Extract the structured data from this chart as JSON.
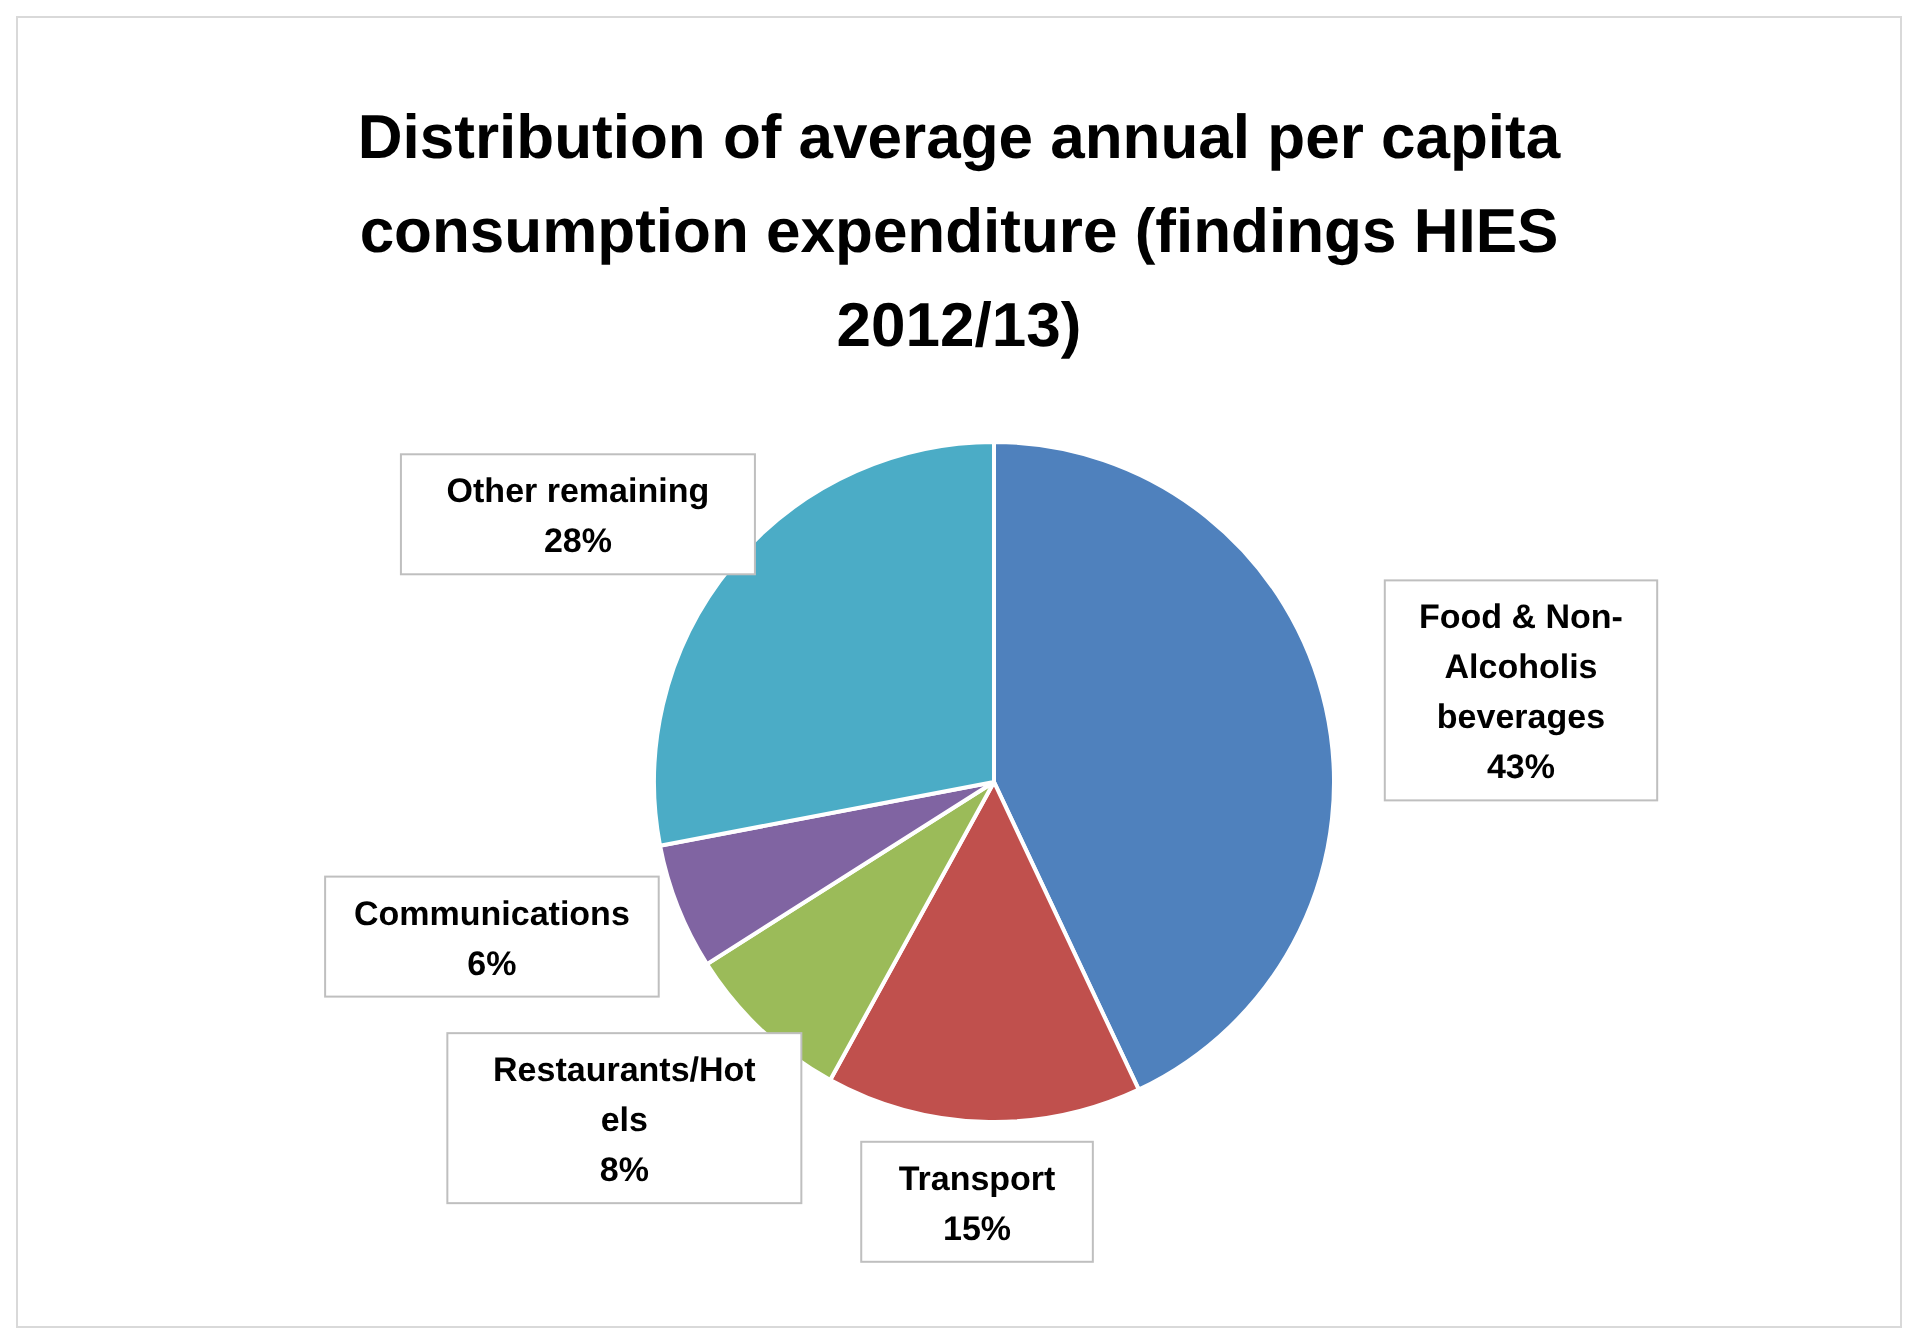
{
  "chart_data": {
    "type": "pie",
    "title": "Distribution of average annual per capita consumption expenditure (findings HIES 2012/13)",
    "categories": [
      "Food & Non-Alcoholis beverages",
      "Transport",
      "Restaurants/Hotels",
      "Communications",
      "Other remaining"
    ],
    "values": [
      43,
      15,
      8,
      6,
      28
    ],
    "value_labels": [
      "43%",
      "15%",
      "8%",
      "6%",
      "28%"
    ],
    "colors": [
      "#4f81bd",
      "#c0504d",
      "#9bbb59",
      "#8064a2",
      "#4bacc6"
    ]
  }
}
